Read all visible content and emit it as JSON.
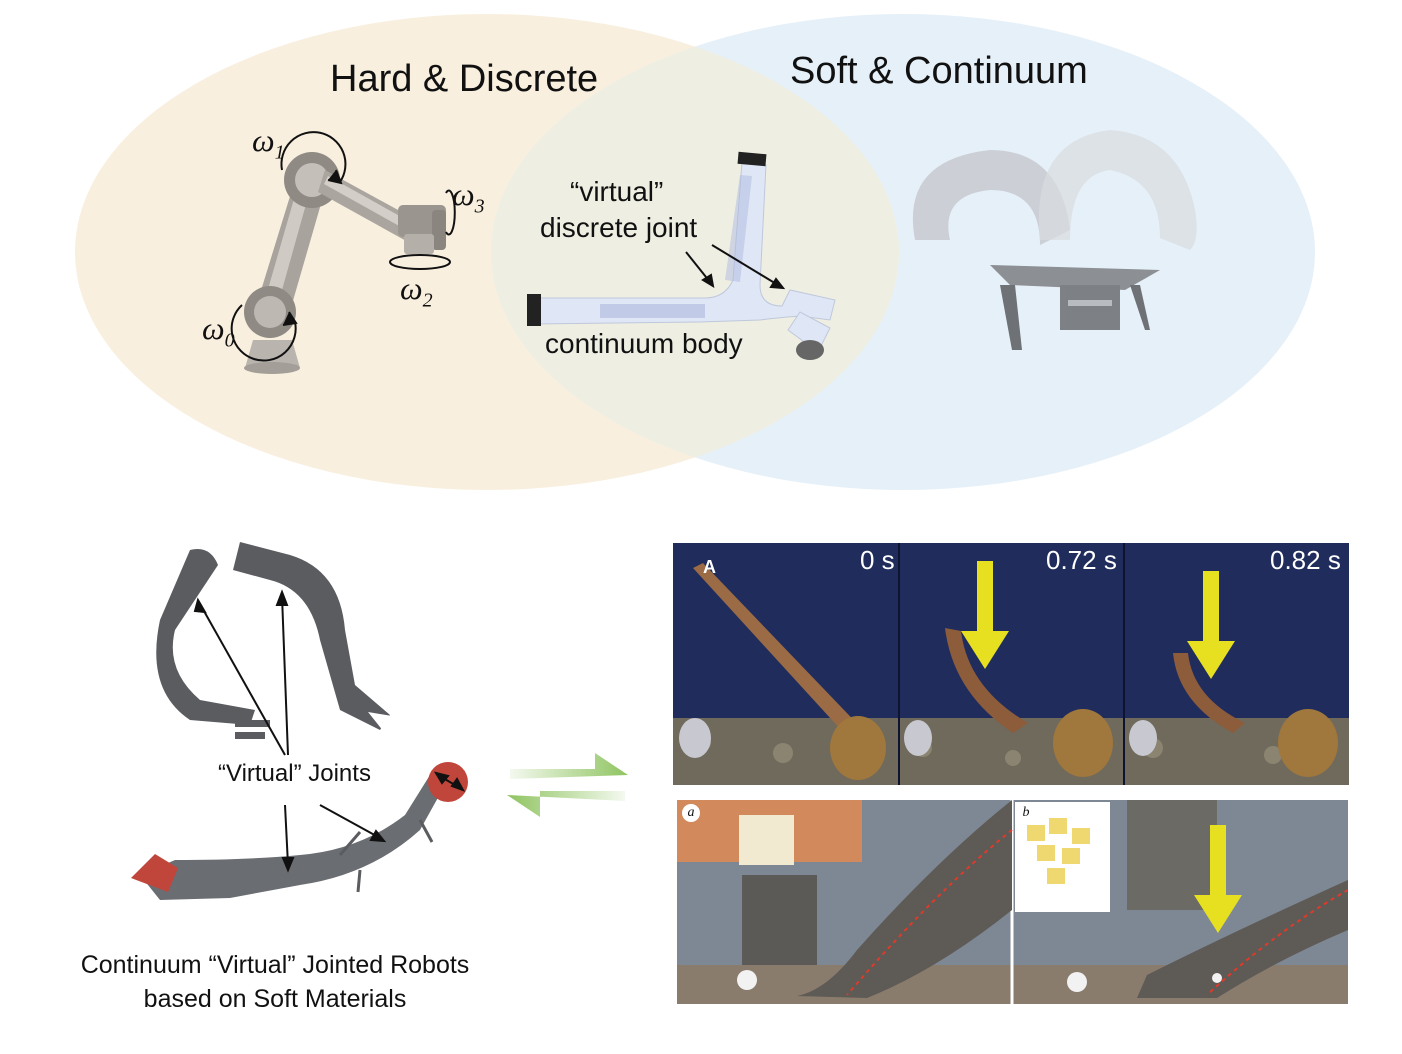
{
  "venn": {
    "left_title": "Hard & Discrete",
    "right_title": "Soft & Continuum",
    "left_color": "#f8efdf",
    "right_color": "#e6f0f8",
    "overlap_color": "#eeefe2"
  },
  "hard_robot": {
    "omega0": "ω",
    "omega0_sub": "0",
    "omega1": "ω",
    "omega1_sub": "1",
    "omega2": "ω",
    "omega2_sub": "2",
    "omega3": "ω",
    "omega3_sub": "3"
  },
  "overlap": {
    "virtual_label": "“virtual”",
    "discrete_joint_label": "discrete joint",
    "continuum_body_label": "continuum body"
  },
  "bottom_left": {
    "virtual_joints_label": "“Virtual” Joints",
    "caption_line1": "Continuum “Virtual” Jointed Robots",
    "caption_line2": "based on Soft Materials",
    "robot_color": "#5a5c60",
    "tip_color": "#c0453a"
  },
  "octopus_strip": {
    "panel_letter": "A",
    "times": [
      "0 s",
      "0.72 s",
      "0.82 s"
    ],
    "arrow_color": "#e6e020"
  },
  "elephant_strip": {
    "sub_a": "a",
    "sub_b": "b"
  },
  "exchange_arrow_color": "#8fc460"
}
